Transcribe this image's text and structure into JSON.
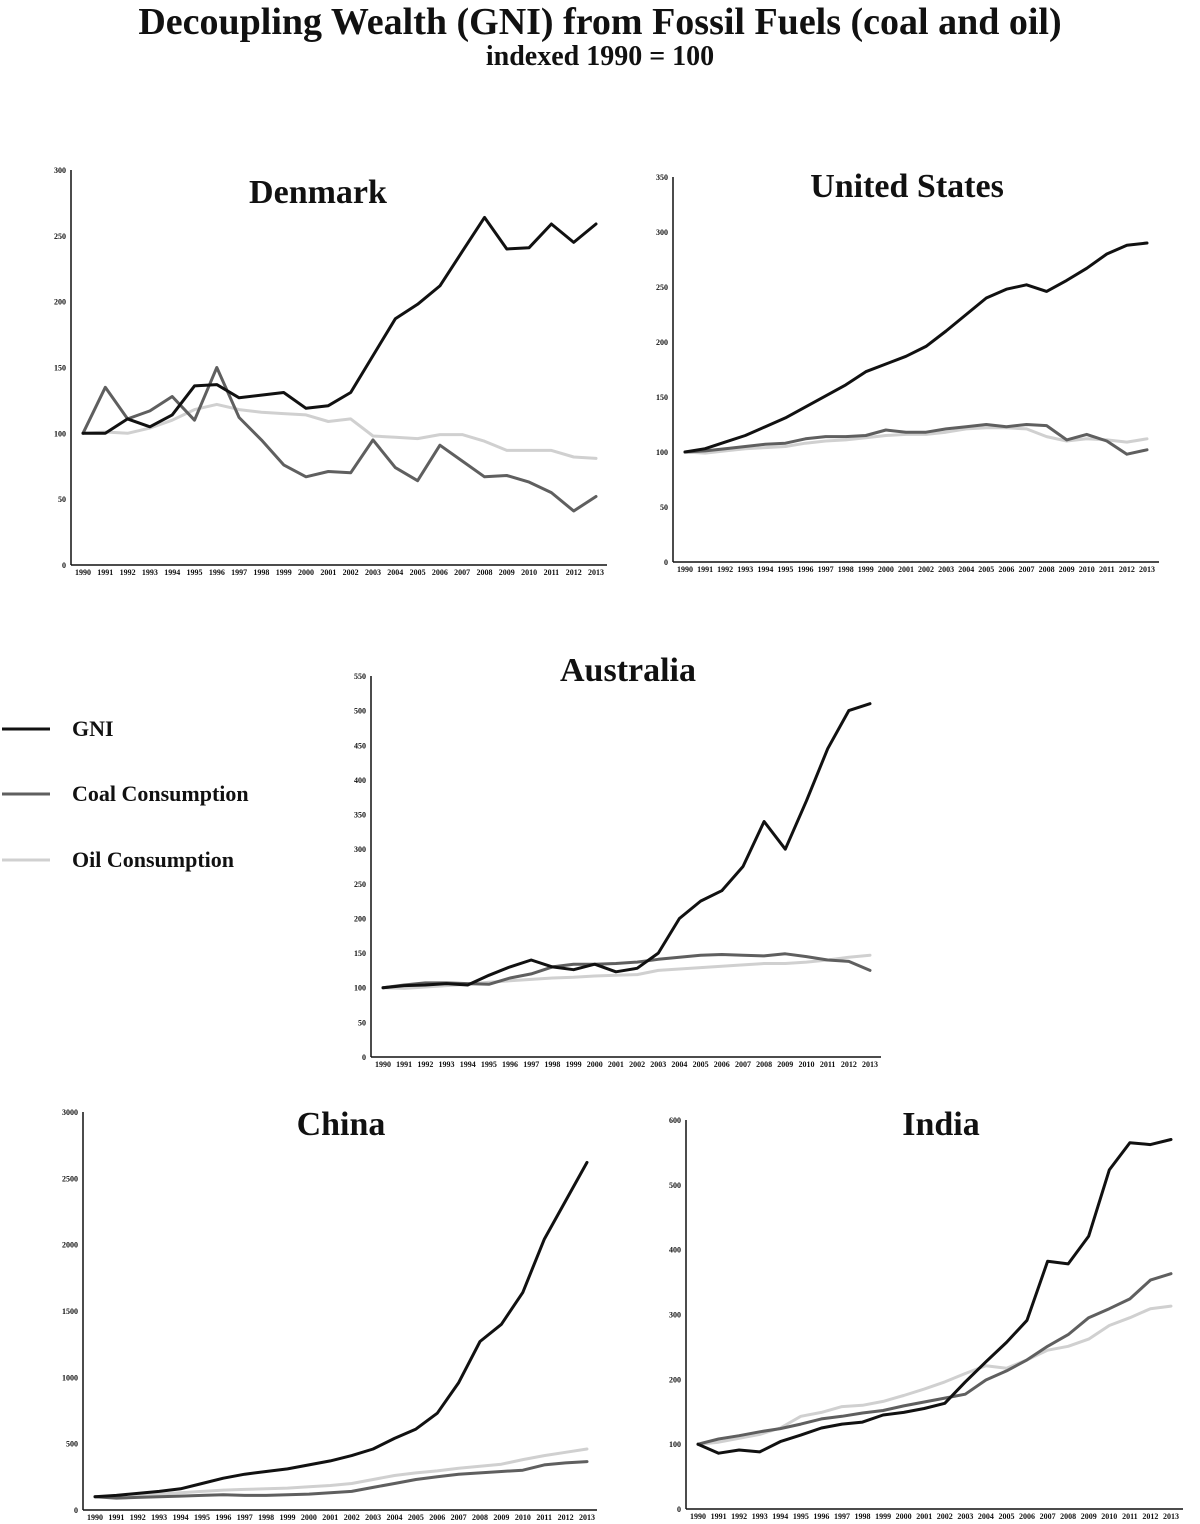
{
  "title": "Decoupling Wealth (GNI) from Fossil Fuels (coal and oil)",
  "subtitle": "indexed 1990 = 100",
  "legend": [
    {
      "label": "GNI",
      "color": "#111111"
    },
    {
      "label": "Coal Consumption",
      "color": "#5f5f5f"
    },
    {
      "label": "Oil Consumption",
      "color": "#d0d0d0"
    }
  ],
  "chart_data": [
    {
      "type": "line",
      "title": "Denmark",
      "x": [
        "1990",
        "1991",
        "1992",
        "1993",
        "1994",
        "1995",
        "1996",
        "1997",
        "1998",
        "1999",
        "2000",
        "2001",
        "2002",
        "2003",
        "2004",
        "2005",
        "2006",
        "2007",
        "2008",
        "2009",
        "2010",
        "2011",
        "2012",
        "2013"
      ],
      "ylim": [
        0,
        300
      ],
      "yticks": [
        0,
        50,
        100,
        150,
        200,
        250,
        300
      ],
      "series": [
        {
          "name": "GNI",
          "values": [
            100,
            100,
            111,
            105,
            114,
            136,
            137,
            127,
            129,
            131,
            119,
            121,
            131,
            159,
            187,
            198,
            212,
            238,
            264,
            240,
            241,
            259,
            245,
            259
          ]
        },
        {
          "name": "Coal Consumption",
          "values": [
            100,
            135,
            111,
            117,
            128,
            110,
            150,
            112,
            95,
            76,
            67,
            71,
            70,
            95,
            74,
            64,
            91,
            79,
            67,
            68,
            63,
            55,
            41,
            52
          ]
        },
        {
          "name": "Oil Consumption",
          "values": [
            100,
            101,
            100,
            104,
            110,
            118,
            122,
            118,
            116,
            115,
            114,
            109,
            111,
            98,
            97,
            96,
            99,
            99,
            94,
            87,
            87,
            87,
            82,
            81
          ]
        }
      ]
    },
    {
      "type": "line",
      "title": "United States",
      "x": [
        "1990",
        "1991",
        "1992",
        "1993",
        "1994",
        "1995",
        "1996",
        "1997",
        "1998",
        "1999",
        "2000",
        "2001",
        "2002",
        "2003",
        "2004",
        "2005",
        "2006",
        "2007",
        "2008",
        "2009",
        "2010",
        "2011",
        "2012",
        "2013"
      ],
      "ylim": [
        0,
        350
      ],
      "yticks": [
        0,
        50,
        100,
        150,
        200,
        250,
        300,
        350
      ],
      "series": [
        {
          "name": "GNI",
          "values": [
            100,
            103,
            109,
            115,
            123,
            131,
            141,
            151,
            161,
            173,
            180,
            187,
            196,
            210,
            225,
            240,
            248,
            252,
            246,
            256,
            267,
            280,
            288,
            290
          ]
        },
        {
          "name": "Coal Consumption",
          "values": [
            100,
            101,
            103,
            105,
            107,
            108,
            112,
            114,
            114,
            115,
            120,
            118,
            118,
            121,
            123,
            125,
            123,
            125,
            124,
            111,
            116,
            110,
            98,
            102
          ]
        },
        {
          "name": "Oil Consumption",
          "values": [
            100,
            99,
            101,
            103,
            104,
            105,
            108,
            110,
            111,
            113,
            115,
            116,
            116,
            118,
            121,
            122,
            122,
            121,
            114,
            110,
            112,
            111,
            109,
            112
          ]
        }
      ]
    },
    {
      "type": "line",
      "title": "Australia",
      "x": [
        "1990",
        "1991",
        "1992",
        "1993",
        "1994",
        "1995",
        "1996",
        "1997",
        "1998",
        "1999",
        "2000",
        "2001",
        "2002",
        "2003",
        "2004",
        "2005",
        "2006",
        "2007",
        "2008",
        "2009",
        "2010",
        "2011",
        "2012",
        "2013"
      ],
      "ylim": [
        0,
        550
      ],
      "yticks": [
        0,
        50,
        100,
        150,
        200,
        250,
        300,
        350,
        400,
        450,
        500,
        550
      ],
      "series": [
        {
          "name": "GNI",
          "values": [
            100,
            103,
            104,
            106,
            104,
            118,
            130,
            140,
            130,
            126,
            134,
            123,
            128,
            150,
            200,
            225,
            240,
            275,
            340,
            300,
            370,
            445,
            500,
            510
          ]
        },
        {
          "name": "Coal Consumption",
          "values": [
            100,
            104,
            107,
            107,
            106,
            105,
            114,
            120,
            130,
            134,
            134,
            135,
            137,
            141,
            144,
            147,
            148,
            147,
            146,
            149,
            145,
            140,
            138,
            125
          ]
        },
        {
          "name": "Oil Consumption",
          "values": [
            100,
            99,
            101,
            103,
            105,
            108,
            110,
            112,
            114,
            115,
            117,
            118,
            119,
            125,
            127,
            129,
            131,
            133,
            135,
            135,
            137,
            140,
            144,
            147
          ]
        }
      ]
    },
    {
      "type": "line",
      "title": "China",
      "x": [
        "1990",
        "1991",
        "1992",
        "1993",
        "1994",
        "1995",
        "1996",
        "1997",
        "1998",
        "1999",
        "2000",
        "2001",
        "2002",
        "2003",
        "2004",
        "2005",
        "2006",
        "2007",
        "2008",
        "2009",
        "2010",
        "2011",
        "2012",
        "2013"
      ],
      "ylim": [
        0,
        3000
      ],
      "yticks": [
        0,
        500,
        1000,
        1500,
        2000,
        2500,
        3000
      ],
      "series": [
        {
          "name": "GNI",
          "values": [
            100,
            110,
            125,
            140,
            160,
            200,
            240,
            270,
            290,
            310,
            340,
            370,
            410,
            460,
            540,
            610,
            730,
            960,
            1270,
            1400,
            1640,
            2040,
            2330,
            2620
          ]
        },
        {
          "name": "Coal Consumption",
          "values": [
            100,
            90,
            95,
            100,
            105,
            110,
            115,
            110,
            110,
            115,
            120,
            130,
            140,
            170,
            200,
            230,
            250,
            270,
            280,
            290,
            300,
            340,
            355,
            365
          ]
        },
        {
          "name": "Oil Consumption",
          "values": [
            100,
            105,
            110,
            120,
            130,
            140,
            150,
            155,
            160,
            165,
            175,
            185,
            200,
            230,
            260,
            280,
            295,
            315,
            330,
            345,
            380,
            410,
            435,
            460
          ]
        }
      ]
    },
    {
      "type": "line",
      "title": "India",
      "x": [
        "1990",
        "1991",
        "1992",
        "1993",
        "1994",
        "1995",
        "1996",
        "1997",
        "1998",
        "1999",
        "2000",
        "2001",
        "2002",
        "2003",
        "2004",
        "2005",
        "2006",
        "2007",
        "2008",
        "2009",
        "2010",
        "2011",
        "2012",
        "2013"
      ],
      "ylim": [
        0,
        600
      ],
      "yticks": [
        0,
        100,
        200,
        300,
        400,
        500,
        600
      ],
      "series": [
        {
          "name": "GNI",
          "values": [
            100,
            86,
            91,
            88,
            104,
            114,
            125,
            131,
            134,
            145,
            149,
            155,
            163,
            196,
            227,
            257,
            291,
            382,
            378,
            421,
            523,
            565,
            562,
            570
          ]
        },
        {
          "name": "Coal Consumption",
          "values": [
            100,
            108,
            113,
            119,
            124,
            131,
            139,
            143,
            148,
            152,
            159,
            165,
            171,
            177,
            199,
            213,
            230,
            251,
            269,
            295,
            309,
            324,
            353,
            363
          ]
        },
        {
          "name": "Oil Consumption",
          "values": [
            100,
            103,
            109,
            115,
            125,
            143,
            149,
            158,
            160,
            166,
            175,
            185,
            196,
            209,
            221,
            217,
            230,
            245,
            251,
            262,
            283,
            295,
            309,
            313
          ]
        }
      ]
    }
  ]
}
